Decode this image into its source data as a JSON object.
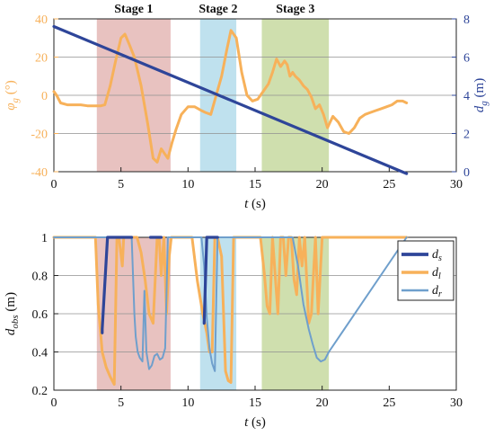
{
  "colors": {
    "orange": "#f7b15a",
    "navy": "#2e4599",
    "lightblue": "#6f9fcc",
    "stage1": "#e8c2c0",
    "stage2": "#bfe1ee",
    "stage3": "#cfdfae",
    "grid": "#909090",
    "axis": "#222222"
  },
  "chart_data": [
    {
      "type": "line",
      "stages": [
        {
          "label": "Stage 1",
          "x0": 3.2,
          "x1": 8.7
        },
        {
          "label": "Stage 2",
          "x0": 10.9,
          "x1": 13.6
        },
        {
          "label": "Stage 3",
          "x0": 15.5,
          "x1": 20.5
        }
      ],
      "xlabel": "t (s)",
      "xlim": [
        0,
        30
      ],
      "xticks": [
        0,
        5,
        10,
        15,
        20,
        25,
        30
      ],
      "ylabel_left": "φ_g (°)",
      "ylim_left": [
        -40,
        40
      ],
      "yticks_left": [
        -40,
        -20,
        0,
        20,
        40
      ],
      "ylabel_right": "d_g (m)",
      "ylim_right": [
        0,
        8
      ],
      "yticks_right": [
        0,
        2,
        4,
        6,
        8
      ],
      "series": [
        {
          "axis": "left",
          "x": [
            0,
            0.2,
            0.5,
            1,
            1.5,
            2,
            2.5,
            3,
            3.5,
            3.8,
            4.2,
            4.6,
            5,
            5.3,
            5.6,
            6,
            6.5,
            7,
            7.4,
            7.7,
            8,
            8.2,
            8.5,
            8.8,
            9.1,
            9.5,
            10,
            10.5,
            11,
            11.3,
            11.7,
            12.1,
            12.5,
            12.9,
            13.2,
            13.6,
            14,
            14.4,
            14.8,
            15.2,
            15.6,
            16,
            16.3,
            16.6,
            16.9,
            17.2,
            17.4,
            17.6,
            17.8,
            18,
            18.3,
            18.6,
            18.9,
            19.2,
            19.5,
            19.8,
            20.1,
            20.4,
            20.8,
            21.2,
            21.6,
            22,
            22.4,
            22.8,
            23.2,
            23.6,
            24,
            24.4,
            24.8,
            25.2,
            25.6,
            26,
            26.3
          ],
          "values": [
            2,
            0,
            -4,
            -5,
            -5,
            -5,
            -5.5,
            -5.5,
            -5.5,
            -5,
            5,
            18,
            30,
            32,
            27,
            20,
            5,
            -15,
            -33,
            -35,
            -28,
            -30,
            -33,
            -25,
            -18,
            -10,
            -6,
            -6,
            -8,
            -9,
            -10,
            0,
            10,
            24,
            34,
            30,
            12,
            0,
            -3,
            -2,
            2,
            6,
            12,
            19,
            15,
            18,
            16,
            10,
            12,
            10,
            8,
            5,
            3,
            -1,
            -7,
            -5,
            -10,
            -17,
            -11,
            -14,
            -19,
            -20,
            -17,
            -12,
            -10,
            -9,
            -8,
            -7,
            -6,
            -5,
            -3,
            -3,
            -4
          ],
          "name": "φ_g"
        },
        {
          "axis": "right",
          "x": [
            0,
            26.3
          ],
          "values": [
            7.6,
            -0.1
          ],
          "name": "d_g"
        }
      ]
    },
    {
      "type": "line",
      "stages": [
        {
          "label": "",
          "x0": 3.2,
          "x1": 8.7
        },
        {
          "label": "",
          "x0": 10.9,
          "x1": 13.6
        },
        {
          "label": "",
          "x0": 15.5,
          "x1": 20.5
        }
      ],
      "xlabel": "t (s)",
      "xlim": [
        0,
        30
      ],
      "xticks": [
        0,
        5,
        10,
        15,
        20,
        25,
        30
      ],
      "ylabel": "d_obs (m)",
      "ylim": [
        0.2,
        1
      ],
      "yticks": [
        0.2,
        0.4,
        0.6,
        0.8,
        1
      ],
      "ytick_labels": [
        "0.2",
        "0.4",
        "0.6",
        "0.8",
        "1"
      ],
      "legend_position": "top-right",
      "series": [
        {
          "name": "d_s",
          "segments": [
            {
              "x": [
                3.6,
                3.6,
                4,
                5.8
              ],
              "y": [
                0.5,
                0.52,
                1,
                1
              ]
            },
            {
              "x": [
                7.2,
                8
              ],
              "y": [
                1,
                1
              ]
            },
            {
              "x": [
                11.2,
                11.2,
                11.4,
                12.2
              ],
              "y": [
                0.56,
                0.55,
                1,
                1
              ]
            }
          ]
        },
        {
          "name": "d_l",
          "x": [
            0,
            3.1,
            3.3,
            3.6,
            3.9,
            4.2,
            4.5,
            4.7,
            4.85,
            5.1,
            5.2,
            5.5,
            5.9,
            6.2,
            6.5,
            6.8,
            7.1,
            7.4,
            7.7,
            7.85,
            8,
            8.2,
            8.4,
            8.6,
            8.75,
            9,
            10.3,
            10.7,
            11.1,
            11.4,
            11.6,
            11.8,
            12,
            12.2,
            12.5,
            12.8,
            13,
            13.2,
            13.4,
            13.6,
            15.4,
            15.7,
            15.9,
            16.1,
            16.3,
            16.5,
            16.7,
            16.9,
            17.1,
            17.3,
            17.5,
            17.7,
            17.9,
            18.1,
            18.3,
            18.5,
            18.7,
            19,
            19.2,
            19.5,
            19.7,
            20,
            26.3
          ],
          "y": [
            1,
            1,
            0.65,
            0.4,
            0.32,
            0.27,
            0.23,
            1,
            1,
            0.85,
            1,
            1,
            1,
            1,
            0.92,
            0.78,
            0.6,
            0.55,
            1,
            1,
            0.8,
            1,
            0.6,
            0.9,
            1,
            1,
            1,
            0.77,
            0.6,
            0.5,
            0.4,
            0.4,
            1,
            1,
            0.9,
            0.3,
            0.25,
            0.24,
            1,
            1,
            1,
            0.8,
            0.64,
            0.6,
            1,
            0.8,
            0.6,
            1,
            1,
            0.8,
            1,
            1,
            0.78,
            0.7,
            1,
            0.85,
            1,
            0.55,
            0.6,
            1,
            0.6,
            1,
            1
          ]
        },
        {
          "name": "d_r",
          "x": [
            0,
            3.3,
            3.6,
            5.8,
            6,
            6.1,
            6.25,
            6.4,
            6.6,
            6.75,
            6.9,
            7.1,
            7.3,
            7.5,
            7.7,
            7.9,
            8.1,
            8.3,
            8.5,
            8.7,
            11,
            11.2,
            11.4,
            11.6,
            11.8,
            12,
            12.2,
            12.5,
            15.5,
            17.8,
            18.2,
            18.6,
            19,
            19.3,
            19.6,
            19.9,
            20.2,
            20.5,
            26.3
          ],
          "y": [
            1,
            1,
            1,
            1,
            0.6,
            0.48,
            0.4,
            0.37,
            0.35,
            0.72,
            0.4,
            0.31,
            0.33,
            0.38,
            0.39,
            0.36,
            0.37,
            0.42,
            1,
            1,
            1,
            0.85,
            0.58,
            0.42,
            0.34,
            0.3,
            1,
            1,
            1,
            1,
            0.85,
            0.65,
            0.52,
            0.44,
            0.37,
            0.35,
            0.36,
            0.4,
            1
          ]
        }
      ]
    }
  ]
}
